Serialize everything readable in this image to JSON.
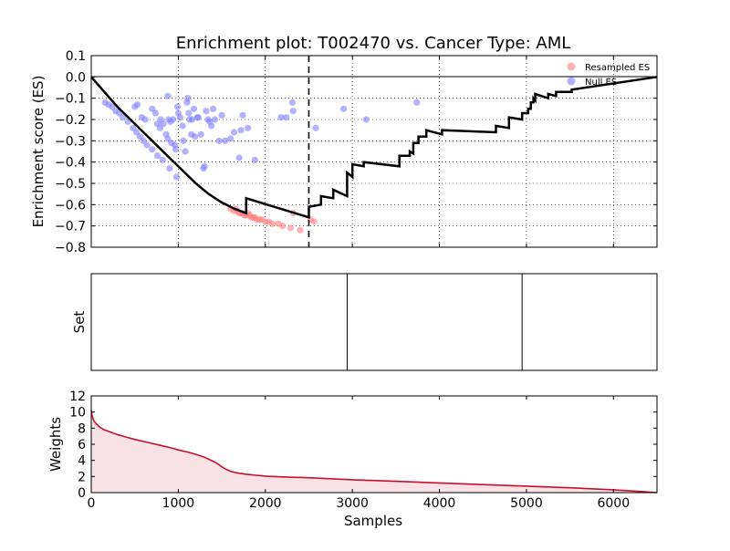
{
  "chart_data": [
    {
      "type": "line+scatter",
      "title": "Enrichment plot: T002470 vs. Cancer Type: AML",
      "xlabel": "",
      "ylabel": "Enrichment score (ES)",
      "xlim": [
        0,
        6500
      ],
      "ylim": [
        -0.8,
        0.1
      ],
      "xticks": [
        0,
        1000,
        2000,
        3000,
        4000,
        5000,
        6000
      ],
      "yticks": [
        0.1,
        0.0,
        -0.1,
        -0.2,
        -0.3,
        -0.4,
        -0.5,
        -0.6,
        -0.7,
        -0.8
      ],
      "ytick_labels": [
        "0.1",
        "0.0",
        "−0.1",
        "−0.2",
        "−0.3",
        "−0.4",
        "−0.5",
        "−0.6",
        "−0.7",
        "−0.8"
      ],
      "grid": true,
      "legend": {
        "placement": "top-right",
        "entries": [
          {
            "label": "Resampled ES",
            "color": "#ff7f7f"
          },
          {
            "label": "Null ES",
            "color": "#7f7fff"
          }
        ]
      },
      "vline_x": 2500,
      "running_es": {
        "x": [
          0,
          150,
          300,
          450,
          600,
          750,
          900,
          1050,
          1200,
          1350,
          1500,
          1650,
          1780,
          1780,
          2500,
          2500,
          2640,
          2640,
          2780,
          2780,
          2940,
          2940,
          3000,
          3000,
          3130,
          3130,
          3540,
          3540,
          3660,
          3660,
          3700,
          3700,
          3760,
          3760,
          3850,
          3850,
          4030,
          4030,
          4650,
          4650,
          4800,
          4800,
          4950,
          4950,
          5020,
          5020,
          5050,
          5050,
          5080,
          5080,
          5100,
          5100,
          5250,
          5250,
          5340,
          5340,
          5520,
          5520,
          6500
        ],
        "y": [
          0,
          -0.07,
          -0.14,
          -0.2,
          -0.26,
          -0.32,
          -0.38,
          -0.44,
          -0.5,
          -0.55,
          -0.59,
          -0.62,
          -0.64,
          -0.57,
          -0.66,
          -0.61,
          -0.6,
          -0.56,
          -0.57,
          -0.53,
          -0.56,
          -0.45,
          -0.47,
          -0.41,
          -0.42,
          -0.4,
          -0.42,
          -0.37,
          -0.37,
          -0.35,
          -0.36,
          -0.31,
          -0.31,
          -0.28,
          -0.28,
          -0.25,
          -0.27,
          -0.25,
          -0.26,
          -0.23,
          -0.24,
          -0.19,
          -0.2,
          -0.17,
          -0.17,
          -0.15,
          -0.15,
          -0.12,
          -0.12,
          -0.1,
          -0.11,
          -0.08,
          -0.1,
          -0.08,
          -0.09,
          -0.07,
          -0.07,
          -0.06,
          0.0
        ],
        "color": "#000000"
      },
      "null_es": {
        "color": "#7f7fff",
        "points": [
          [
            160,
            -0.12
          ],
          [
            200,
            -0.13
          ],
          [
            240,
            -0.14
          ],
          [
            280,
            -0.16
          ],
          [
            320,
            -0.17
          ],
          [
            360,
            -0.19
          ],
          [
            420,
            -0.21
          ],
          [
            480,
            -0.24
          ],
          [
            520,
            -0.26
          ],
          [
            560,
            -0.28
          ],
          [
            600,
            -0.3
          ],
          [
            640,
            -0.32
          ],
          [
            700,
            -0.34
          ],
          [
            760,
            -0.37
          ],
          [
            820,
            -0.39
          ],
          [
            900,
            -0.43
          ],
          [
            980,
            -0.47
          ],
          [
            500,
            -0.14
          ],
          [
            530,
            -0.13
          ],
          [
            580,
            -0.19
          ],
          [
            620,
            -0.2
          ],
          [
            700,
            -0.15
          ],
          [
            740,
            -0.17
          ],
          [
            760,
            -0.22
          ],
          [
            790,
            -0.24
          ],
          [
            800,
            -0.2
          ],
          [
            830,
            -0.22
          ],
          [
            860,
            -0.27
          ],
          [
            880,
            -0.09
          ],
          [
            880,
            -0.29
          ],
          [
            890,
            -0.2
          ],
          [
            910,
            -0.21
          ],
          [
            920,
            -0.31
          ],
          [
            940,
            -0.2
          ],
          [
            960,
            -0.32
          ],
          [
            970,
            -0.34
          ],
          [
            990,
            -0.14
          ],
          [
            1000,
            -0.17
          ],
          [
            1020,
            -0.19
          ],
          [
            1050,
            -0.23
          ],
          [
            1060,
            -0.3
          ],
          [
            1080,
            -0.35
          ],
          [
            1100,
            -0.12
          ],
          [
            1110,
            -0.1
          ],
          [
            1120,
            -0.17
          ],
          [
            1130,
            -0.2
          ],
          [
            1150,
            -0.27
          ],
          [
            1160,
            -0.2
          ],
          [
            1180,
            -0.15
          ],
          [
            1190,
            -0.28
          ],
          [
            1220,
            -0.19
          ],
          [
            1230,
            -0.19
          ],
          [
            1260,
            -0.27
          ],
          [
            1290,
            -0.43
          ],
          [
            1300,
            -0.42
          ],
          [
            1320,
            -0.16
          ],
          [
            1340,
            -0.2
          ],
          [
            1360,
            -0.21
          ],
          [
            1380,
            -0.23
          ],
          [
            1400,
            -0.15
          ],
          [
            1420,
            -0.2
          ],
          [
            1470,
            -0.3
          ],
          [
            1500,
            -0.18
          ],
          [
            1540,
            -0.3
          ],
          [
            1600,
            -0.29
          ],
          [
            1640,
            -0.26
          ],
          [
            1700,
            -0.38
          ],
          [
            1720,
            -0.25
          ],
          [
            1740,
            -0.18
          ],
          [
            1800,
            -0.24
          ],
          [
            1880,
            -0.39
          ],
          [
            2180,
            -0.19
          ],
          [
            2240,
            -0.19
          ],
          [
            2310,
            -0.12
          ],
          [
            2320,
            -0.16
          ],
          [
            2580,
            -0.24
          ],
          [
            2900,
            -0.15
          ],
          [
            3160,
            -0.2
          ],
          [
            3740,
            -0.12
          ]
        ]
      },
      "resampled_es": {
        "color": "#ff7f7f",
        "points": [
          [
            1600,
            -0.62
          ],
          [
            1640,
            -0.63
          ],
          [
            1660,
            -0.62
          ],
          [
            1680,
            -0.63
          ],
          [
            1700,
            -0.64
          ],
          [
            1720,
            -0.64
          ],
          [
            1740,
            -0.64
          ],
          [
            1760,
            -0.65
          ],
          [
            1780,
            -0.65
          ],
          [
            1800,
            -0.64
          ],
          [
            1820,
            -0.65
          ],
          [
            1840,
            -0.66
          ],
          [
            1860,
            -0.66
          ],
          [
            1880,
            -0.66
          ],
          [
            1900,
            -0.67
          ],
          [
            1930,
            -0.67
          ],
          [
            1960,
            -0.67
          ],
          [
            2000,
            -0.68
          ],
          [
            2040,
            -0.68
          ],
          [
            2080,
            -0.69
          ],
          [
            2150,
            -0.69
          ],
          [
            2200,
            -0.7
          ],
          [
            2290,
            -0.71
          ],
          [
            2320,
            -0.64
          ],
          [
            2400,
            -0.72
          ],
          [
            2520,
            -0.67
          ],
          [
            2560,
            -0.68
          ]
        ]
      }
    },
    {
      "type": "rug",
      "title": "",
      "xlabel": "",
      "ylabel": "Set",
      "xlim": [
        0,
        6500
      ],
      "hits": [
        2940,
        4950
      ]
    },
    {
      "type": "area",
      "title": "",
      "xlabel": "Samples",
      "ylabel": "Weights",
      "xlim": [
        0,
        6500
      ],
      "ylim": [
        0,
        12
      ],
      "xticks": [
        0,
        1000,
        2000,
        3000,
        4000,
        5000,
        6000
      ],
      "yticks": [
        0,
        2,
        4,
        6,
        8,
        10,
        12
      ],
      "color": "#c8102e",
      "x": [
        0,
        10,
        30,
        60,
        100,
        150,
        200,
        300,
        400,
        500,
        600,
        700,
        800,
        900,
        1000,
        1100,
        1200,
        1300,
        1400,
        1450,
        1500,
        1550,
        1600,
        1650,
        1700,
        1800,
        1900,
        2000,
        2200,
        2500,
        3000,
        3500,
        4000,
        4500,
        5000,
        5500,
        6000,
        6300,
        6500
      ],
      "y": [
        10.2,
        9.5,
        8.9,
        8.5,
        8.1,
        7.8,
        7.6,
        7.2,
        6.9,
        6.6,
        6.35,
        6.1,
        5.85,
        5.6,
        5.3,
        5.05,
        4.75,
        4.4,
        3.9,
        3.6,
        3.2,
        2.9,
        2.65,
        2.5,
        2.4,
        2.25,
        2.15,
        2.05,
        1.95,
        1.85,
        1.6,
        1.4,
        1.2,
        1.0,
        0.8,
        0.6,
        0.35,
        0.15,
        0.0
      ]
    }
  ]
}
